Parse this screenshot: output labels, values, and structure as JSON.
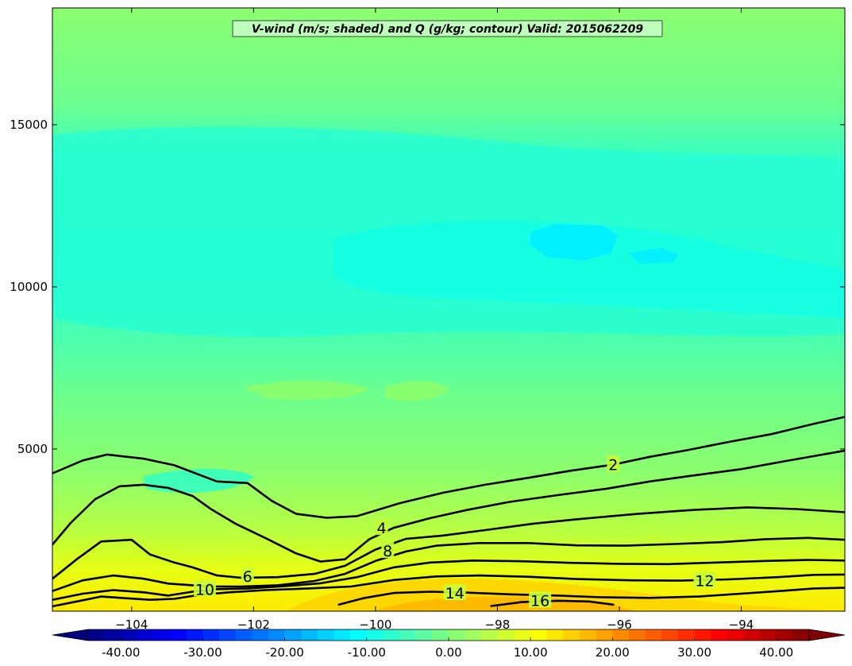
{
  "chart_data": {
    "type": "contour",
    "title": "V-wind (m/s; shaded) and Q (g/kg; contour) Valid: 2015062209",
    "xlabel": "",
    "ylabel": "",
    "xlim": [
      -105.3,
      -92.3
    ],
    "ylim": [
      0,
      18600
    ],
    "x_ticks": [
      -104,
      -102,
      -100,
      -98,
      -96,
      -94
    ],
    "x_tick_labels": [
      "−104",
      "−102",
      "−100",
      "−98",
      "−96",
      "−94"
    ],
    "y_ticks": [
      5000,
      10000,
      15000
    ],
    "y_tick_labels": [
      "5000",
      "10000",
      "15000"
    ],
    "shaded_field": "V-wind (m/s)",
    "contour_field": "Q (g/kg)",
    "colorbar": {
      "min": -44,
      "max": 44,
      "step": 2,
      "extend": "both",
      "ticks": [
        -40,
        -30,
        -20,
        -10,
        0,
        10,
        20,
        30,
        40
      ],
      "tick_labels": [
        "-40.00",
        "-30.00",
        "-20.00",
        "-10.00",
        "0.00",
        "10.00",
        "20.00",
        "30.00",
        "40.00"
      ]
    },
    "contour_labels": [
      {
        "value": "2",
        "x": -96.1,
        "y": 4520
      },
      {
        "value": "4",
        "x": -99.9,
        "y": 2570
      },
      {
        "value": "6",
        "x": -102.1,
        "y": 1080
      },
      {
        "value": "8",
        "x": -99.8,
        "y": 1860
      },
      {
        "value": "10",
        "x": -102.8,
        "y": 680
      },
      {
        "value": "12",
        "x": -94.6,
        "y": 940
      },
      {
        "value": "14",
        "x": -98.7,
        "y": 560
      },
      {
        "value": "16",
        "x": -97.3,
        "y": 330
      }
    ],
    "contours": [
      {
        "level": 2,
        "points": [
          [
            -105.3,
            4250
          ],
          [
            -104.8,
            4650
          ],
          [
            -104.4,
            4830
          ],
          [
            -103.8,
            4700
          ],
          [
            -103.3,
            4500
          ],
          [
            -102.6,
            4000
          ],
          [
            -102.1,
            3950
          ],
          [
            -101.7,
            3400
          ],
          [
            -101.3,
            3000
          ],
          [
            -100.8,
            2880
          ],
          [
            -100.3,
            2930
          ],
          [
            -99.6,
            3330
          ],
          [
            -98.9,
            3650
          ],
          [
            -98.2,
            3900
          ],
          [
            -97.5,
            4110
          ],
          [
            -96.8,
            4330
          ],
          [
            -96.1,
            4520
          ],
          [
            -95.5,
            4760
          ],
          [
            -94.9,
            4960
          ],
          [
            -94.2,
            5220
          ],
          [
            -93.5,
            5460
          ],
          [
            -92.8,
            5780
          ],
          [
            -92.3,
            5990
          ]
        ]
      },
      {
        "level": 4,
        "points": [
          [
            -105.3,
            2050
          ],
          [
            -105.0,
            2720
          ],
          [
            -104.6,
            3450
          ],
          [
            -104.2,
            3850
          ],
          [
            -103.8,
            3900
          ],
          [
            -103.4,
            3800
          ],
          [
            -103.0,
            3550
          ],
          [
            -102.7,
            3150
          ],
          [
            -102.3,
            2700
          ],
          [
            -101.8,
            2250
          ],
          [
            -101.3,
            1780
          ],
          [
            -100.9,
            1530
          ],
          [
            -100.5,
            1600
          ],
          [
            -100.1,
            2220
          ],
          [
            -99.7,
            2570
          ],
          [
            -99.1,
            2870
          ],
          [
            -98.5,
            3120
          ],
          [
            -97.8,
            3370
          ],
          [
            -97.0,
            3580
          ],
          [
            -96.2,
            3780
          ],
          [
            -95.5,
            4000
          ],
          [
            -94.8,
            4180
          ],
          [
            -94.0,
            4380
          ],
          [
            -93.3,
            4620
          ],
          [
            -92.3,
            4950
          ]
        ]
      },
      {
        "level": 6,
        "points": [
          [
            -105.3,
            1000
          ],
          [
            -104.9,
            1600
          ],
          [
            -104.5,
            2150
          ],
          [
            -104.0,
            2200
          ],
          [
            -103.7,
            1750
          ],
          [
            -103.3,
            1500
          ],
          [
            -103.0,
            1350
          ],
          [
            -102.6,
            1100
          ],
          [
            -102.2,
            1030
          ],
          [
            -101.6,
            1050
          ],
          [
            -101.0,
            1150
          ],
          [
            -100.5,
            1400
          ],
          [
            -100.0,
            1900
          ],
          [
            -99.5,
            2230
          ],
          [
            -98.9,
            2330
          ],
          [
            -98.2,
            2500
          ],
          [
            -97.4,
            2700
          ],
          [
            -96.6,
            2850
          ],
          [
            -95.7,
            3000
          ],
          [
            -94.8,
            3120
          ],
          [
            -93.9,
            3200
          ],
          [
            -93.1,
            3150
          ],
          [
            -92.3,
            3050
          ]
        ]
      },
      {
        "level": 8,
        "points": [
          [
            -105.3,
            620
          ],
          [
            -104.8,
            950
          ],
          [
            -104.3,
            1100
          ],
          [
            -103.8,
            1000
          ],
          [
            -103.4,
            850
          ],
          [
            -103.0,
            800
          ],
          [
            -102.6,
            760
          ],
          [
            -102.2,
            760
          ],
          [
            -101.6,
            800
          ],
          [
            -101.0,
            930
          ],
          [
            -100.5,
            1150
          ],
          [
            -100.0,
            1550
          ],
          [
            -99.5,
            1840
          ],
          [
            -99.0,
            2020
          ],
          [
            -98.3,
            2100
          ],
          [
            -97.5,
            2100
          ],
          [
            -96.7,
            2030
          ],
          [
            -95.9,
            2020
          ],
          [
            -95.1,
            2070
          ],
          [
            -94.3,
            2130
          ],
          [
            -93.6,
            2220
          ],
          [
            -92.9,
            2260
          ],
          [
            -92.3,
            2200
          ]
        ]
      },
      {
        "level": 10,
        "points": [
          [
            -105.3,
            350
          ],
          [
            -104.8,
            540
          ],
          [
            -104.3,
            650
          ],
          [
            -103.8,
            580
          ],
          [
            -103.4,
            480
          ],
          [
            -103.0,
            600
          ],
          [
            -102.6,
            680
          ],
          [
            -102.1,
            700
          ],
          [
            -101.5,
            770
          ],
          [
            -100.9,
            860
          ],
          [
            -100.3,
            1050
          ],
          [
            -99.7,
            1350
          ],
          [
            -99.1,
            1500
          ],
          [
            -98.4,
            1560
          ],
          [
            -97.6,
            1540
          ],
          [
            -96.8,
            1490
          ],
          [
            -96.0,
            1460
          ],
          [
            -95.2,
            1450
          ],
          [
            -94.4,
            1500
          ],
          [
            -93.6,
            1550
          ],
          [
            -92.9,
            1580
          ],
          [
            -92.3,
            1560
          ]
        ]
      },
      {
        "level": 12,
        "points": [
          [
            -105.3,
            150
          ],
          [
            -104.9,
            300
          ],
          [
            -104.5,
            450
          ],
          [
            -104.1,
            400
          ],
          [
            -103.7,
            350
          ],
          [
            -103.3,
            380
          ],
          [
            -102.9,
            500
          ],
          [
            -102.4,
            580
          ],
          [
            -101.8,
            650
          ],
          [
            -101.1,
            700
          ],
          [
            -100.4,
            760
          ],
          [
            -99.7,
            960
          ],
          [
            -99.0,
            1070
          ],
          [
            -98.3,
            1100
          ],
          [
            -97.5,
            1060
          ],
          [
            -96.7,
            990
          ],
          [
            -95.8,
            950
          ],
          [
            -95.0,
            940
          ],
          [
            -94.2,
            980
          ],
          [
            -93.4,
            1050
          ],
          [
            -92.8,
            1120
          ],
          [
            -92.3,
            1130
          ]
        ]
      },
      {
        "level": 14,
        "points": [
          [
            -100.6,
            200
          ],
          [
            -100.2,
            400
          ],
          [
            -99.7,
            560
          ],
          [
            -99.1,
            600
          ],
          [
            -98.5,
            570
          ],
          [
            -97.8,
            520
          ],
          [
            -97.0,
            480
          ],
          [
            -96.3,
            430
          ],
          [
            -95.5,
            410
          ],
          [
            -94.7,
            450
          ],
          [
            -94.0,
            540
          ],
          [
            -93.3,
            630
          ],
          [
            -92.8,
            700
          ],
          [
            -92.3,
            720
          ]
        ]
      },
      {
        "level": 16,
        "points": [
          [
            -98.1,
            160
          ],
          [
            -97.6,
            280
          ],
          [
            -97.0,
            320
          ],
          [
            -96.5,
            300
          ],
          [
            -96.1,
            200
          ]
        ]
      }
    ]
  }
}
